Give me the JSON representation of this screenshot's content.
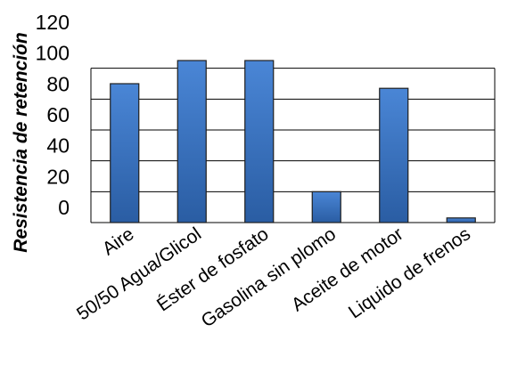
{
  "chart_data": {
    "type": "bar",
    "title": "",
    "xlabel": "",
    "ylabel": "Resistencia de retención",
    "categories": [
      "Aire",
      "50/50 Agua/Glicol",
      "Éster de fosfato",
      "Gasolina sin plomo",
      "Aceite de motor",
      "Liquido de frenos"
    ],
    "values": [
      90,
      105,
      105,
      20,
      87,
      3
    ],
    "ylim": [
      0,
      120
    ],
    "yticks": [
      "0",
      "20",
      "40",
      "60",
      "80",
      "100",
      "120"
    ],
    "grid": true,
    "legend": "none",
    "colors": {
      "bar_fill": "#3a75c4",
      "bar_stroke": "#1f1f1f",
      "grid": "#000000",
      "text": "#000000"
    }
  }
}
